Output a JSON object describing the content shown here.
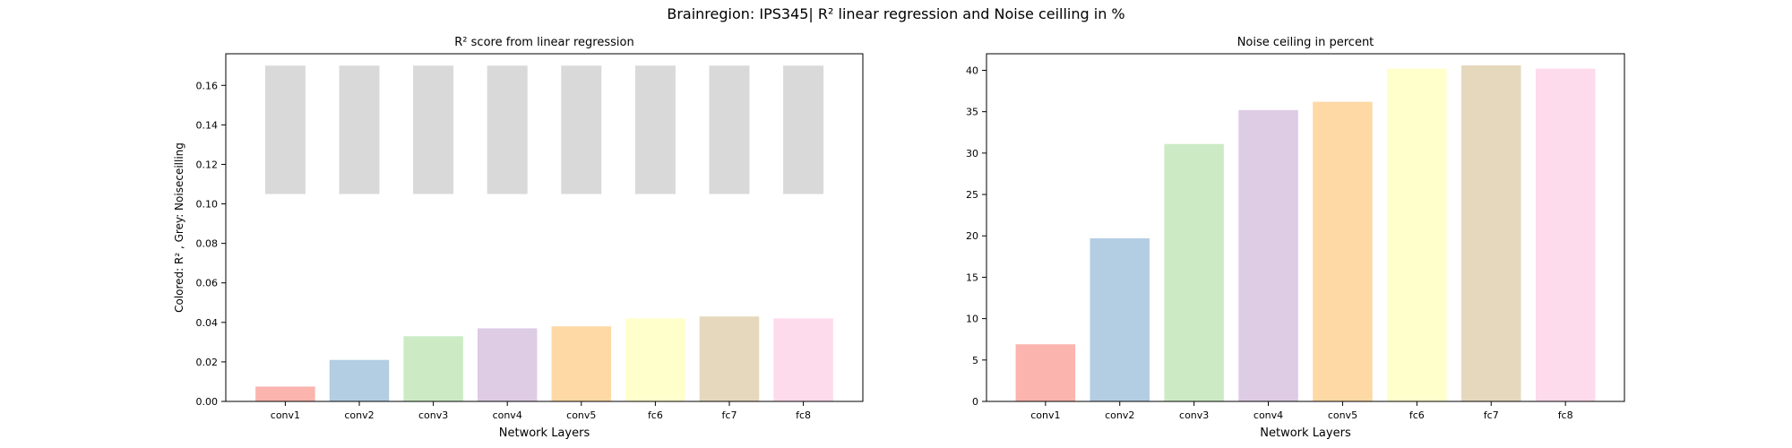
{
  "figure": {
    "suptitle": "Brainregion: IPS345| R² linear regression and Noise ceilling in %"
  },
  "chart_data": [
    {
      "type": "bar",
      "title": "R² score from linear regression",
      "xlabel": "Network Layers",
      "ylabel": "Colored: R² , Grey: Noiseceilling",
      "categories": [
        "conv1",
        "conv2",
        "conv3",
        "conv4",
        "conv5",
        "fc6",
        "fc7",
        "fc8"
      ],
      "ylim": [
        0,
        0.176
      ],
      "yticks": [
        0.0,
        0.02,
        0.04,
        0.06,
        0.08,
        0.1,
        0.12,
        0.14,
        0.16
      ],
      "ytick_labels": [
        "0.00",
        "0.02",
        "0.04",
        "0.06",
        "0.08",
        "0.10",
        "0.12",
        "0.14",
        "0.16"
      ],
      "series": [
        {
          "role": "r2",
          "values": [
            0.0075,
            0.021,
            0.033,
            0.037,
            0.038,
            0.042,
            0.043,
            0.042
          ]
        },
        {
          "role": "noise_ceiling_range",
          "lower": [
            0.105,
            0.105,
            0.105,
            0.105,
            0.105,
            0.105,
            0.105,
            0.105
          ],
          "upper": [
            0.17,
            0.17,
            0.17,
            0.17,
            0.17,
            0.17,
            0.17,
            0.17
          ],
          "color": "#d9d9d9"
        }
      ],
      "colors": [
        "#fbb4ae",
        "#b3cde3",
        "#ccebc5",
        "#decbe4",
        "#fed9a6",
        "#ffffcc",
        "#e5d8bd",
        "#fddaec"
      ],
      "grid": false
    },
    {
      "type": "bar",
      "title": "Noise ceiling in percent",
      "xlabel": "Network Layers",
      "ylabel": "",
      "categories": [
        "conv1",
        "conv2",
        "conv3",
        "conv4",
        "conv5",
        "fc6",
        "fc7",
        "fc8"
      ],
      "ylim": [
        0,
        42.0
      ],
      "yticks": [
        0,
        5,
        10,
        15,
        20,
        25,
        30,
        35,
        40
      ],
      "ytick_labels": [
        "0",
        "5",
        "10",
        "15",
        "20",
        "25",
        "30",
        "35",
        "40"
      ],
      "values": [
        6.9,
        19.7,
        31.1,
        35.2,
        36.2,
        40.2,
        40.6,
        40.2
      ],
      "colors": [
        "#fbb4ae",
        "#b3cde3",
        "#ccebc5",
        "#decbe4",
        "#fed9a6",
        "#ffffcc",
        "#e5d8bd",
        "#fddaec"
      ],
      "grid": false
    }
  ]
}
